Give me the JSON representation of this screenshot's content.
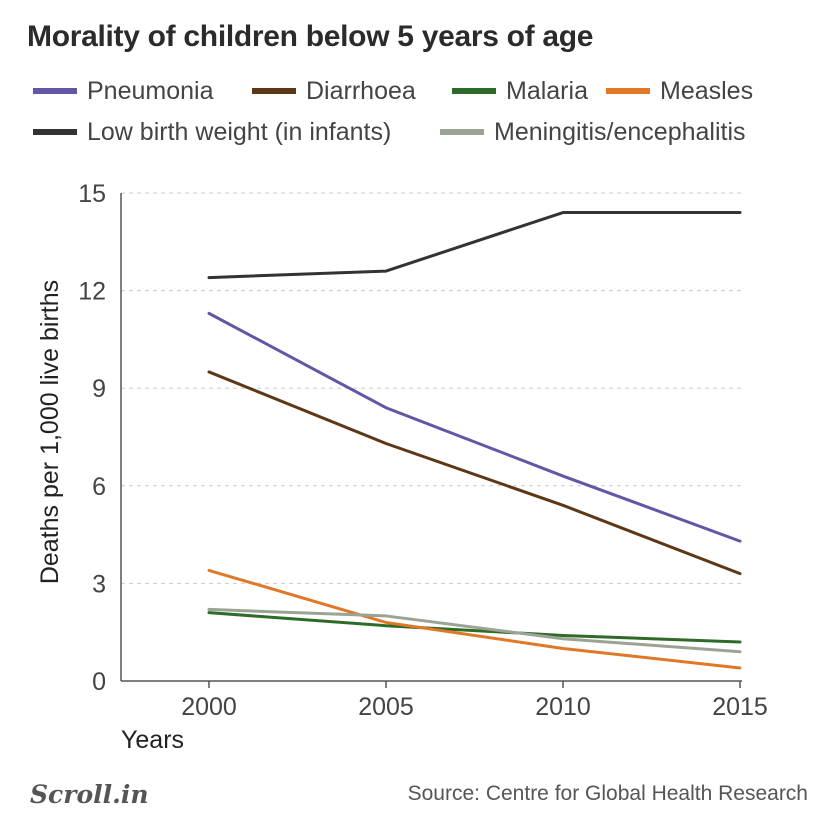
{
  "header": {
    "title": "Morality of children below 5 years of age"
  },
  "colors": {
    "Pneumonia": "#6257a6",
    "Diarrhoea": "#5e3816",
    "Malaria": "#2f6b28",
    "Measles": "#e07828",
    "Low birth weight (in infants)": "#333333",
    "Meningitis/encephalitis": "#9aa394",
    "grid": "#cccccc",
    "axis": "#555555"
  },
  "chart_data": {
    "type": "line",
    "x": [
      2000,
      2005,
      2010,
      2015
    ],
    "series": [
      {
        "name": "Pneumonia",
        "values": [
          11.3,
          8.4,
          6.3,
          4.3
        ]
      },
      {
        "name": "Diarrhoea",
        "values": [
          9.5,
          7.3,
          5.4,
          3.3
        ]
      },
      {
        "name": "Malaria",
        "values": [
          2.1,
          1.7,
          1.4,
          1.2
        ]
      },
      {
        "name": "Measles",
        "values": [
          3.4,
          1.8,
          1.0,
          0.4
        ]
      },
      {
        "name": "Low birth weight (in infants)",
        "values": [
          12.4,
          12.6,
          14.4,
          14.4
        ]
      },
      {
        "name": "Meningitis/encephalitis",
        "values": [
          2.2,
          2.0,
          1.3,
          0.9
        ]
      }
    ],
    "title": "Morality of children below 5 years of age",
    "xlabel": "Years",
    "ylabel": "Deaths per 1,000 live births",
    "ylim": [
      0,
      15
    ],
    "yticks": [
      0,
      3,
      6,
      9,
      12,
      15
    ],
    "grid": "horizontal dashed",
    "legend": "top"
  },
  "footer": {
    "logo": "Scroll.in",
    "source": "Source: Centre for Global Health Research"
  }
}
